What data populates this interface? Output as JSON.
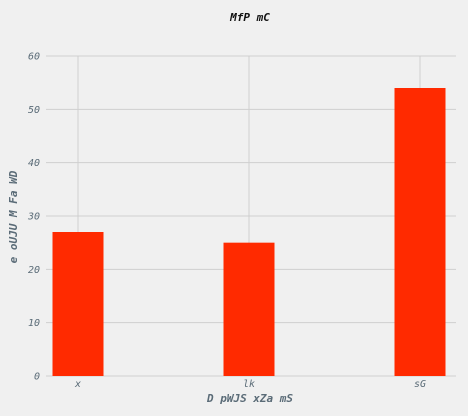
{
  "chart_data": {
    "type": "bar",
    "title": "MfP mC",
    "xlabel": "D pWJS xZa mS",
    "ylabel": "e oUJU M Fa WD",
    "categories": [
      "x",
      "lk",
      "sG"
    ],
    "values": [
      27,
      25,
      54
    ],
    "ylim": [
      0,
      60
    ],
    "yticks": [
      0,
      10,
      20,
      30,
      40,
      50,
      60
    ],
    "grid": true,
    "bar_color": "#ff2a00",
    "background": "#f0f0f0",
    "grid_color": "#cfcfcf",
    "text_color": "#5a6b77"
  }
}
